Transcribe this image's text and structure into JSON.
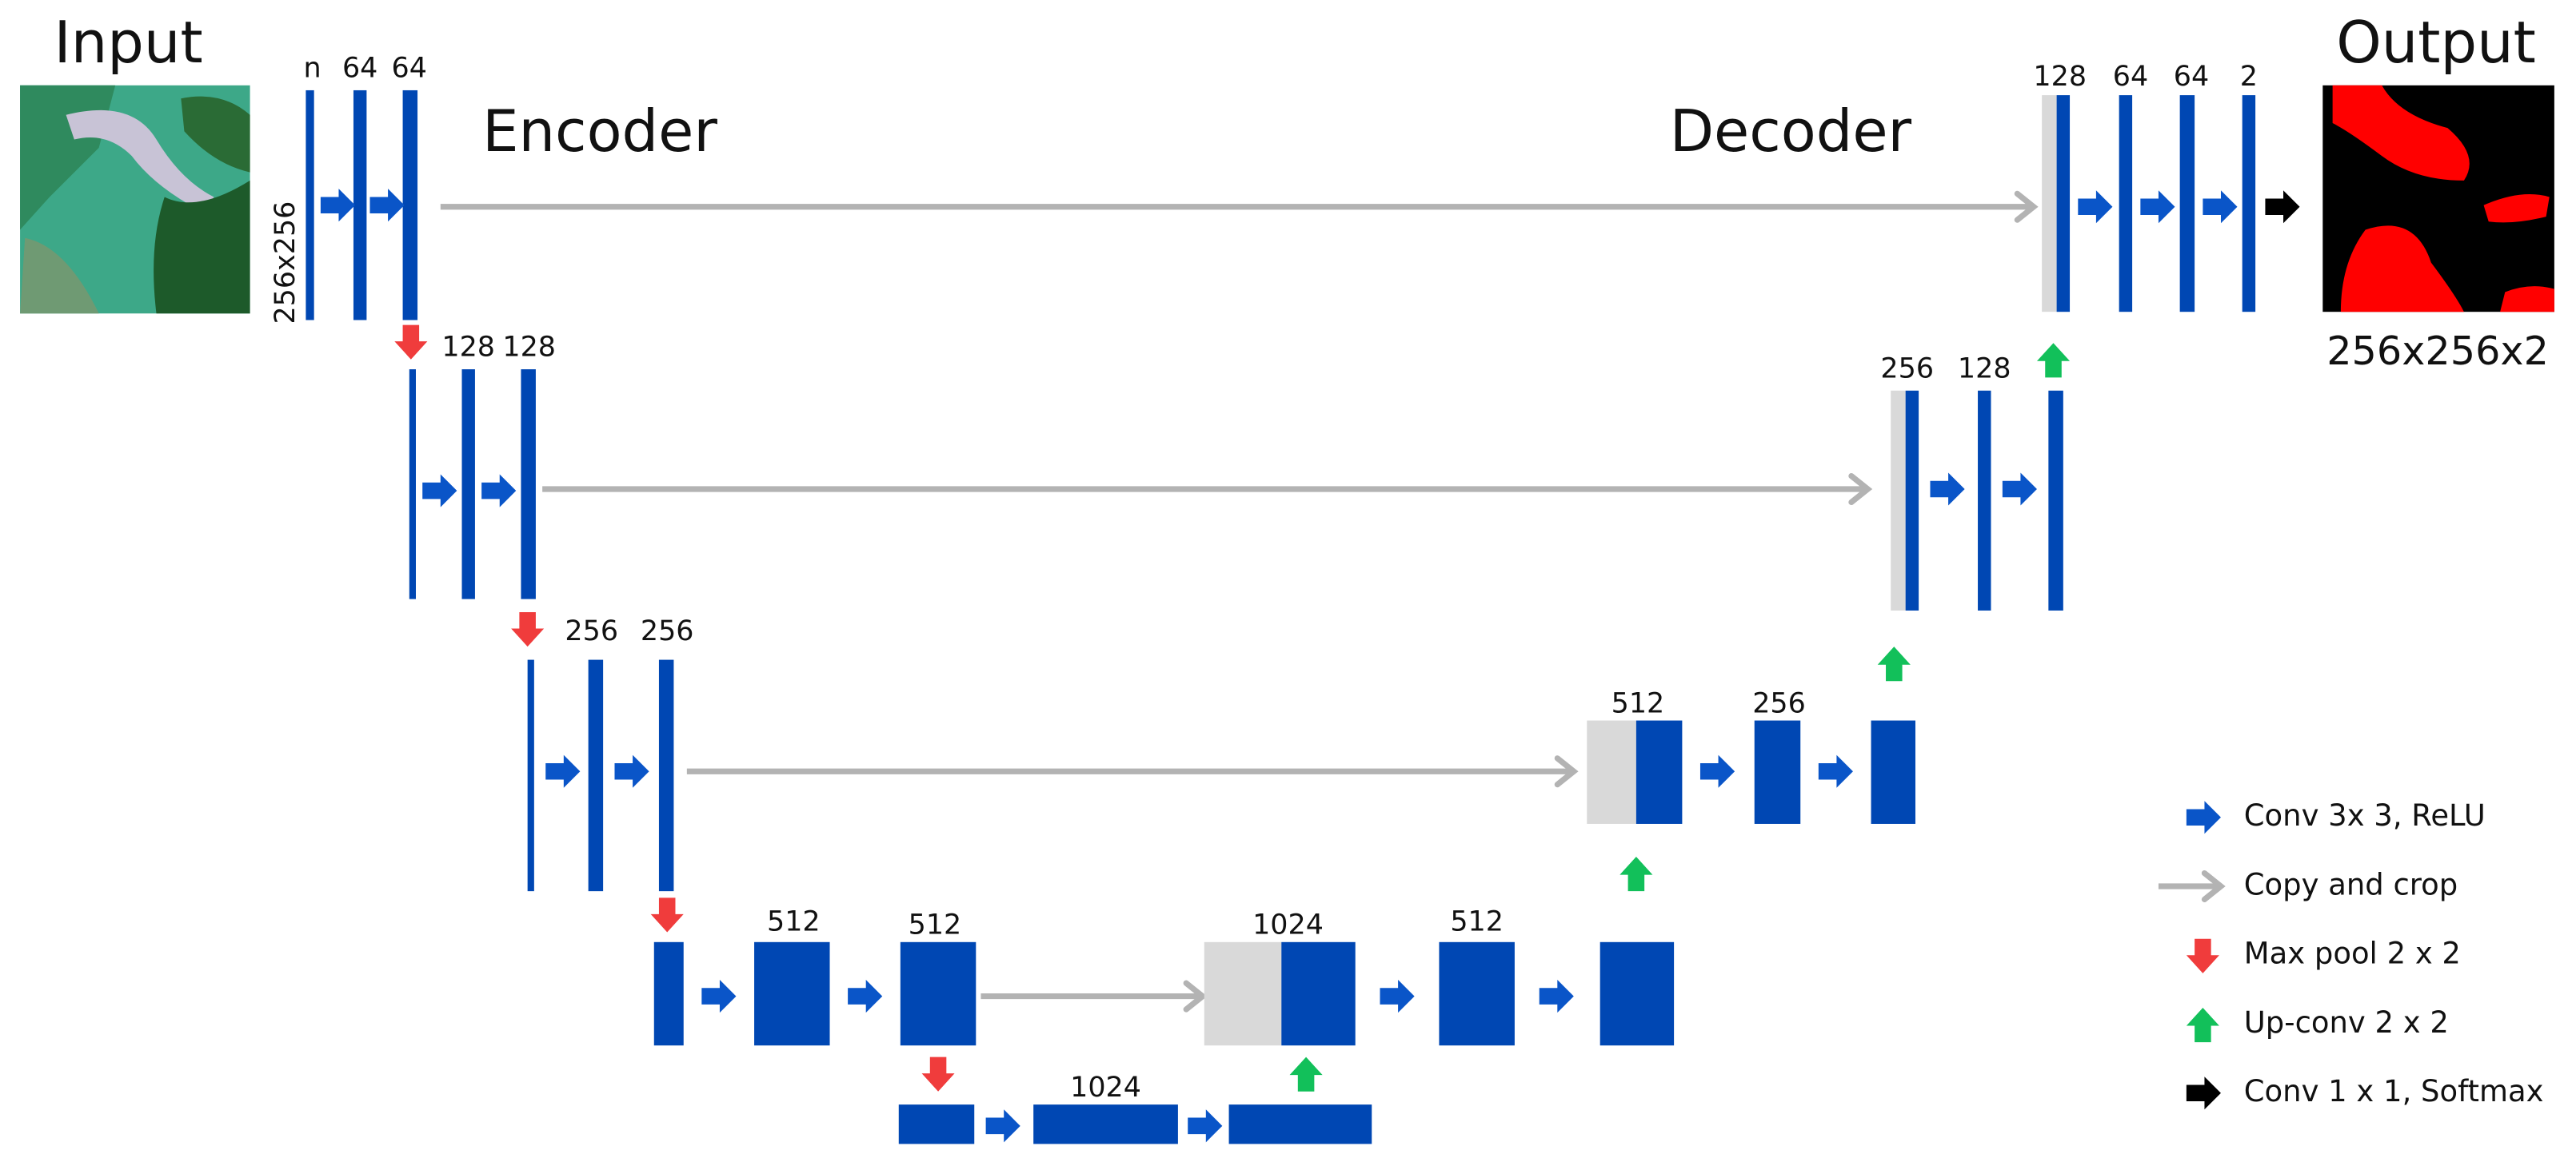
{
  "labels": {
    "input": "Input",
    "output": "Output",
    "encoder": "Encoder",
    "decoder": "Decoder",
    "input_size": "256x256",
    "output_size": "256x256x2"
  },
  "channels": [
    "n",
    "64",
    "64",
    "128",
    "128",
    "256",
    "256",
    "512",
    "512",
    "1024",
    "1024",
    "512",
    "512",
    "256",
    "256",
    "128",
    "128",
    "64",
    "64",
    "2"
  ],
  "legend": [
    "Conv 3x 3, ReLU",
    "Copy and crop",
    "Max pool 2 x 2",
    "Up-conv 2 x 2",
    "Conv 1 x 1, Softmax"
  ]
}
